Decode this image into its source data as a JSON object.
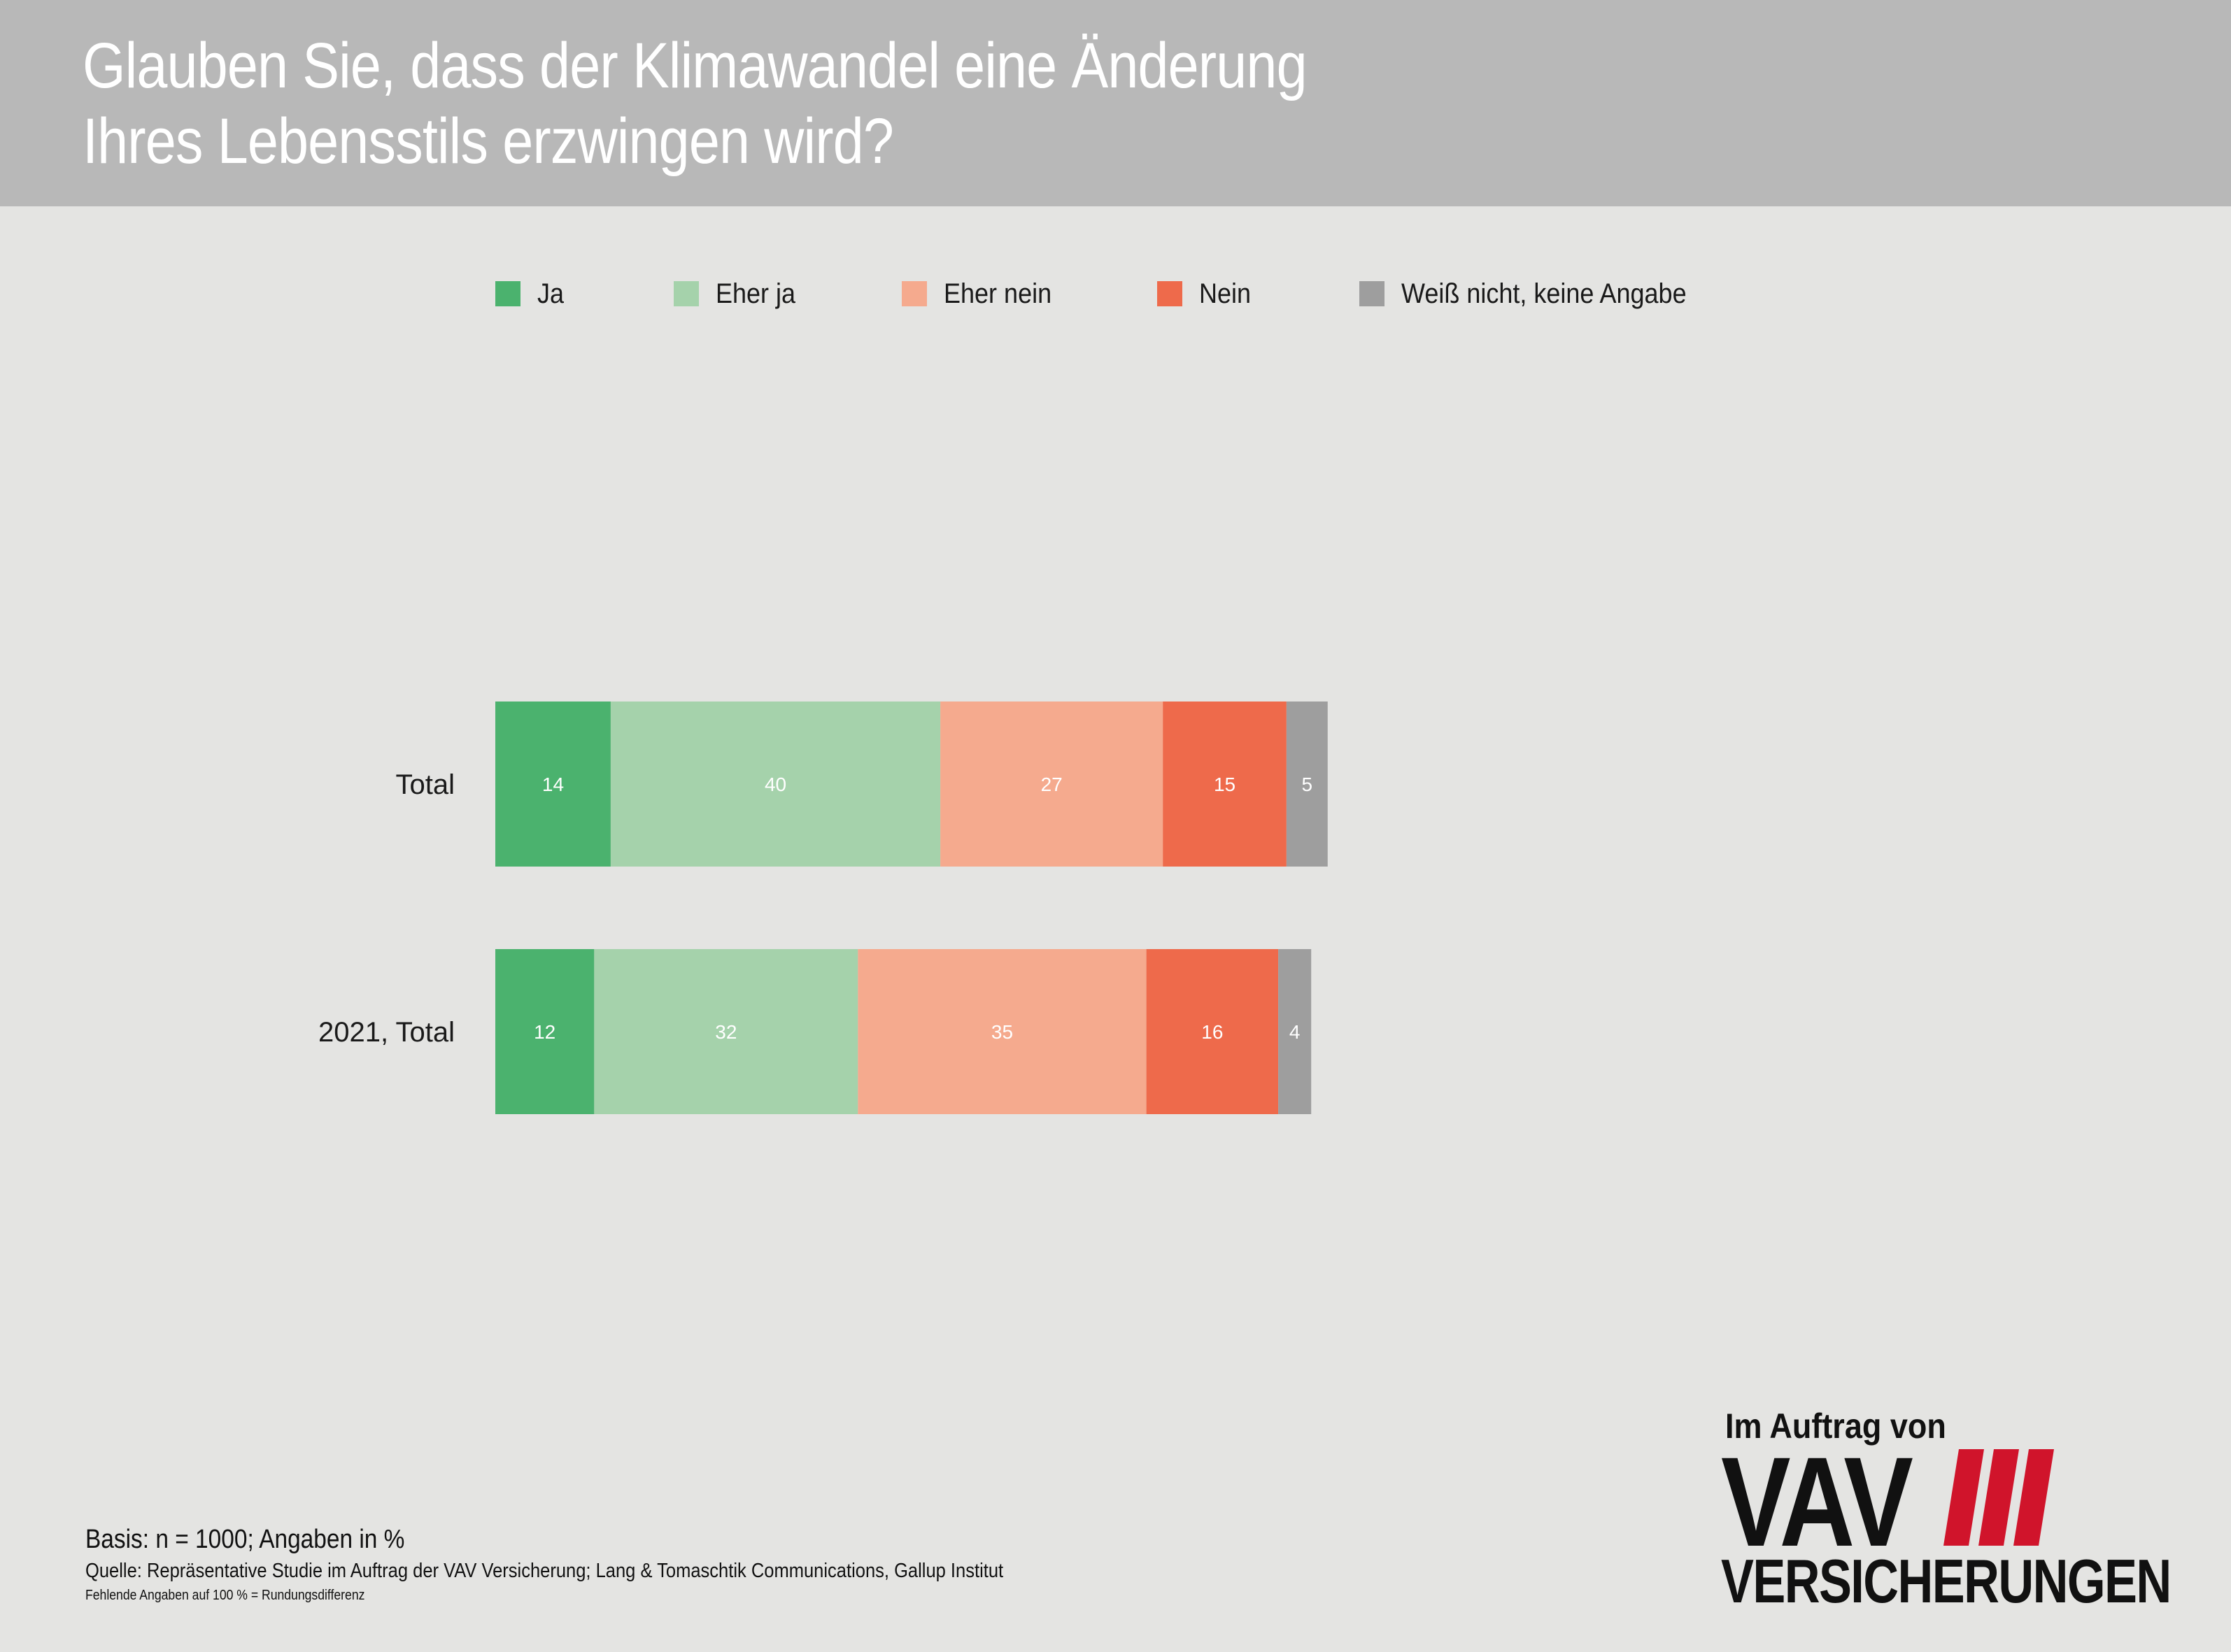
{
  "header": {
    "title": "Glauben Sie, dass der Klimawandel eine Änderung\nIhres Lebensstils erzwingen wird?"
  },
  "chart_data": {
    "type": "bar",
    "orientation": "horizontal",
    "stacked": true,
    "categories": [
      "Total",
      "2021, Total"
    ],
    "series": [
      {
        "name": "Ja",
        "values": [
          14,
          12
        ],
        "color": "#4bb26e"
      },
      {
        "name": "Eher ja",
        "values": [
          40,
          32
        ],
        "color": "#a5d2ab"
      },
      {
        "name": "Eher nein",
        "values": [
          27,
          35
        ],
        "color": "#f5aa8e"
      },
      {
        "name": "Nein",
        "values": [
          15,
          16
        ],
        "color": "#ee6a4b"
      },
      {
        "name": "Weiß nicht, keine Angabe",
        "values": [
          5,
          4
        ],
        "color": "#9e9e9e"
      }
    ],
    "xlim": [
      0,
      100
    ],
    "grid": false,
    "legend_position": "top",
    "value_label_color": "#ffffff"
  },
  "footer": {
    "basis": "Basis: n = 1000; Angaben in %",
    "source": "Quelle: Repräsentative Studie im Auftrag der VAV Versicherung; Lang & Tomaschtik Communications, Gallup Institut",
    "note": "Fehlende Angaben auf 100 % = Rundungsdifferenz"
  },
  "logo": {
    "tagline": "Im Auftrag von",
    "name": "VAV",
    "subname": "VERSICHERUNGEN",
    "accent_color": "#d0142b"
  }
}
